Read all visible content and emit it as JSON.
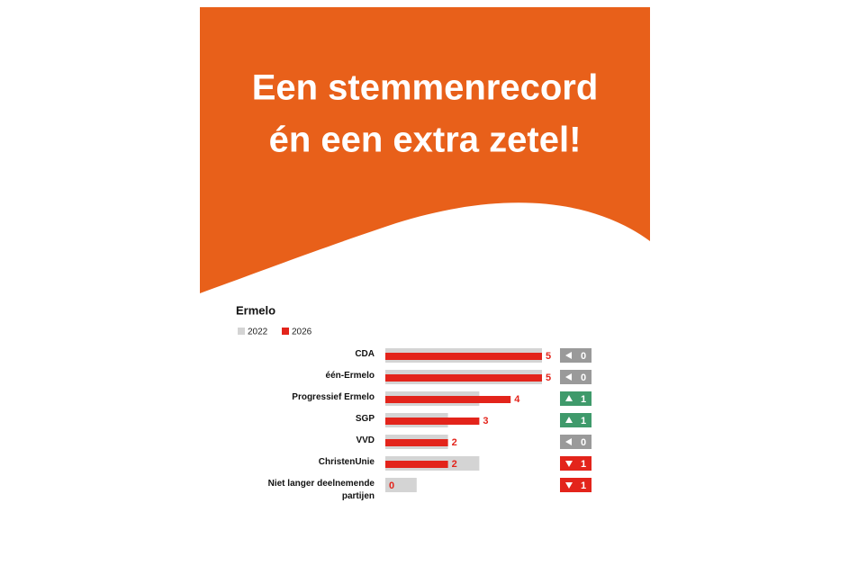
{
  "chart_data": {
    "type": "bar",
    "title": [
      "Een stemmenrecord",
      "én een extra zetel!"
    ],
    "subtitle": "Ermelo",
    "categories": [
      "CDA",
      "één-Ermelo",
      "Progressief Ermelo",
      "SGP",
      "VVD",
      "ChristenUnie",
      "Niet langer deelnemende partijen"
    ],
    "series": [
      {
        "name": "2022",
        "color": "#d4d4d4",
        "values": [
          5,
          5,
          3,
          2,
          2,
          3,
          1
        ]
      },
      {
        "name": "2026",
        "color": "#e3241b",
        "values": [
          5,
          5,
          4,
          3,
          2,
          2,
          0
        ]
      }
    ],
    "changes": {
      "values": [
        0,
        0,
        1,
        1,
        0,
        -1,
        -1
      ],
      "value_labels": [
        "0",
        "0",
        "1",
        "1",
        "0",
        "1",
        "1"
      ],
      "colors": {
        "up": "#3f9a6b",
        "same": "#9a9a9a",
        "down": "#e3241b"
      }
    },
    "xlim": [
      0,
      5
    ],
    "header_color": "#e8601a"
  }
}
